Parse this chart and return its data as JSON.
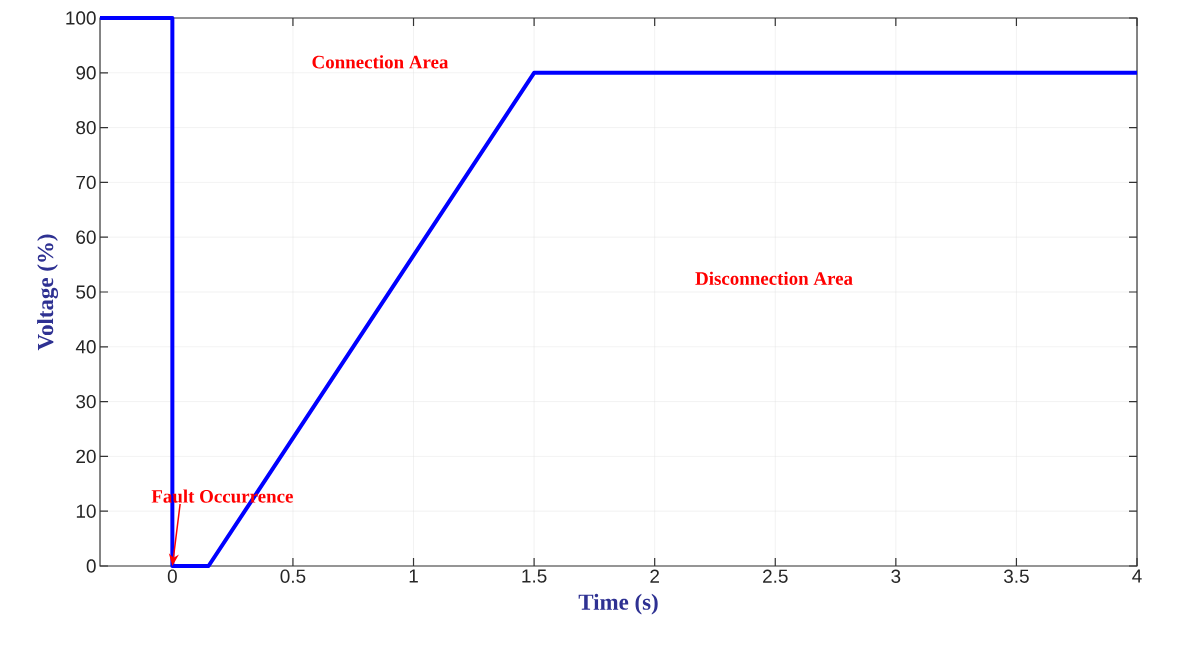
{
  "chart_data": {
    "type": "line",
    "x": [
      -0.3,
      0,
      0,
      0.15,
      1.5,
      4
    ],
    "values": [
      100,
      100,
      0,
      0,
      90,
      90
    ],
    "color": "#0000ff",
    "xlabel": "Time (s)",
    "ylabel": "Voltage (%)",
    "xlim": [
      -0.3,
      4
    ],
    "ylim": [
      0,
      100
    ],
    "xticks": [
      0,
      0.5,
      1,
      1.5,
      2,
      2.5,
      3,
      3.5,
      4
    ],
    "yticks": [
      0,
      10,
      20,
      30,
      40,
      50,
      60,
      70,
      80,
      90,
      100
    ],
    "grid": true,
    "marker": "none",
    "line_style": "solid",
    "annotations": [
      "Connection Area",
      "Disconnection Area",
      {
        "text": "Fault Occurrence",
        "x": 0,
        "y": 0
      }
    ]
  }
}
